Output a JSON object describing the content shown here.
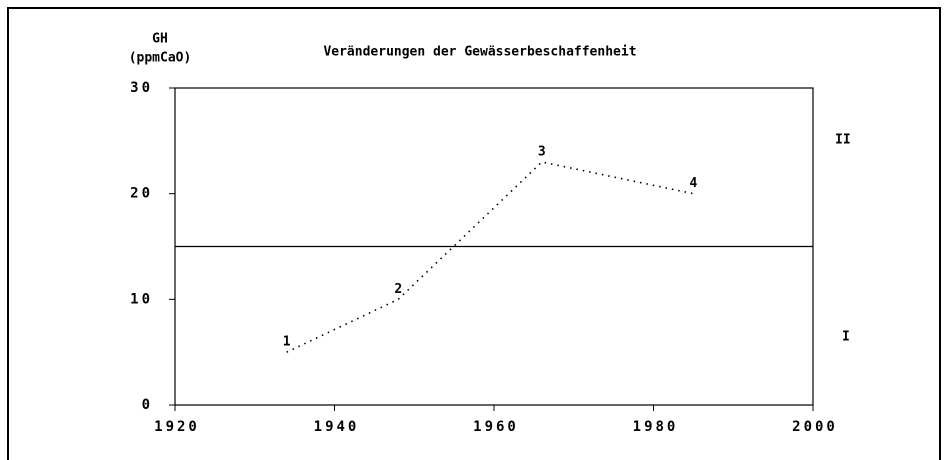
{
  "chart_data": {
    "type": "line",
    "title": "Veränderungen der Gewässerbeschaffenheit",
    "y_label": [
      "GH",
      "(ppmCaO)"
    ],
    "x": [
      1934,
      1948,
      1966,
      1985
    ],
    "values": [
      5,
      10,
      23,
      20
    ],
    "point_labels": [
      "1",
      "2",
      "3",
      "4"
    ],
    "color": "#000000",
    "reference_line": 15,
    "zone_labels": [
      "II",
      "I"
    ],
    "xlim": [
      1920,
      2000
    ],
    "xticks": [
      1920,
      1940,
      1960,
      1980,
      2000
    ],
    "ylim": [
      0,
      30
    ],
    "yticks": [
      0,
      10,
      20,
      30
    ]
  }
}
